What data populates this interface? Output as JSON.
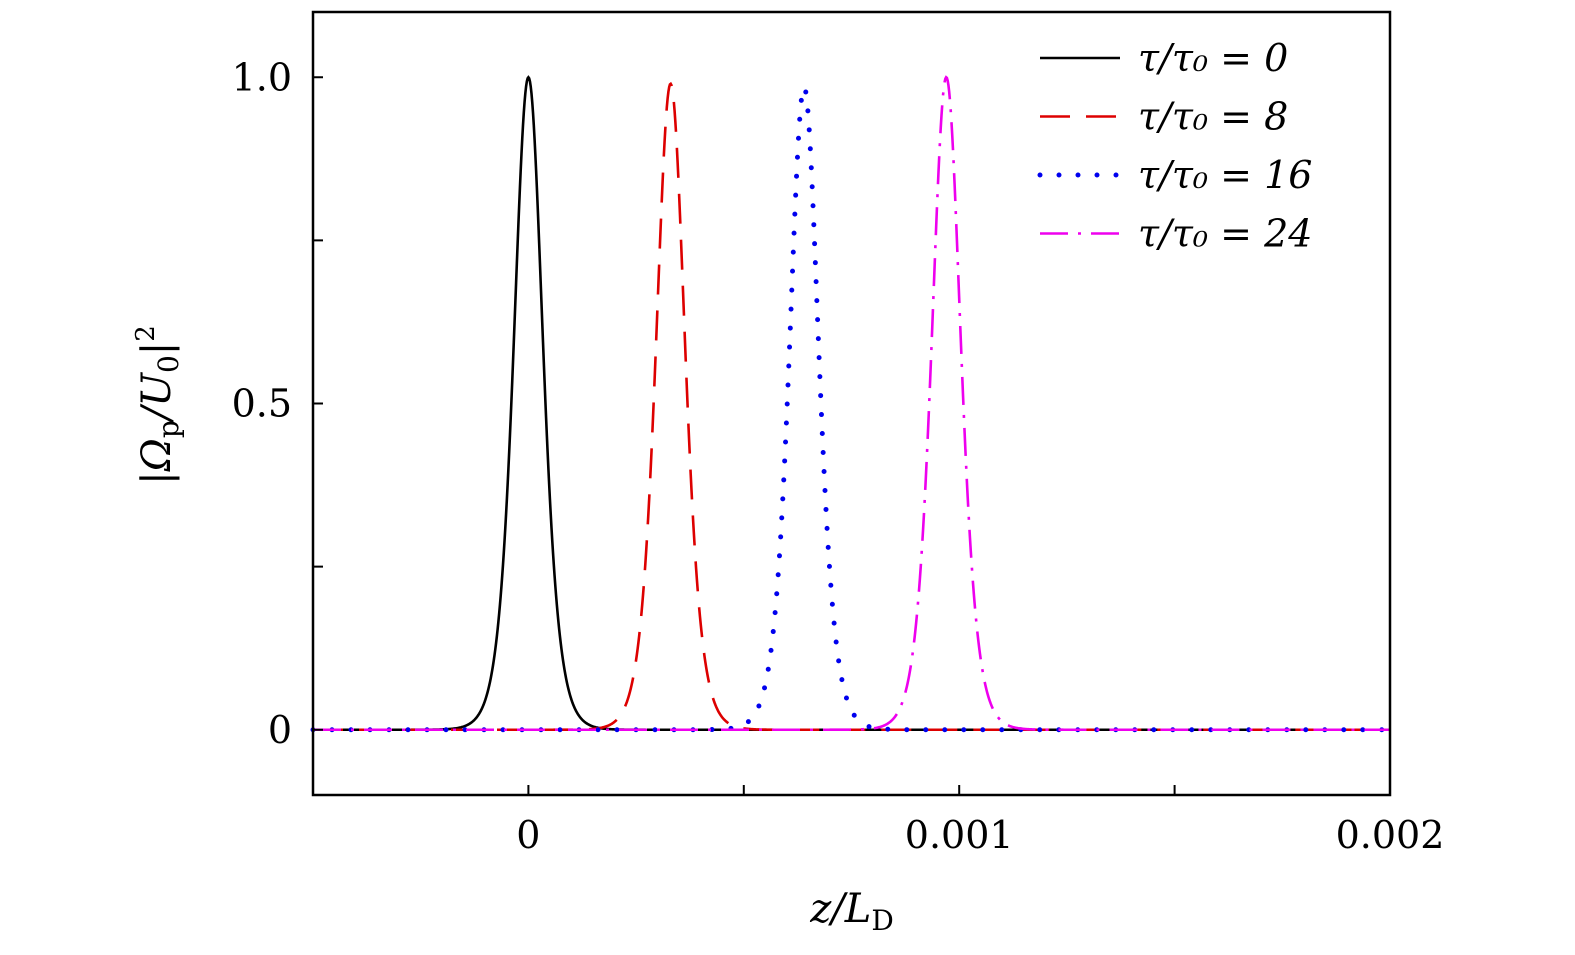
{
  "chart_data": {
    "type": "line",
    "title": "",
    "xlabel": "z/L_D",
    "ylabel": "|Ω_p/U_0|²",
    "xlim": [
      -0.0005,
      0.002
    ],
    "ylim": [
      -0.1,
      1.1
    ],
    "x_ticks": [
      {
        "value": 0,
        "label": "0"
      },
      {
        "value": 0.0005,
        "label": ""
      },
      {
        "value": 0.001,
        "label": "0.001"
      },
      {
        "value": 0.0015,
        "label": ""
      },
      {
        "value": 0.002,
        "label": "0.002"
      }
    ],
    "y_ticks": [
      {
        "value": 0,
        "label": "0"
      },
      {
        "value": 0.25,
        "label": ""
      },
      {
        "value": 0.5,
        "label": "0.5"
      },
      {
        "value": 0.75,
        "label": ""
      },
      {
        "value": 1.0,
        "label": "1.0"
      }
    ],
    "grid": false,
    "legend_position": "top-right",
    "series": [
      {
        "name": "τ/τ₀ = 0",
        "center": 0.0,
        "peak": 1.0,
        "width": 4.5e-05,
        "color": "#000000",
        "style": "solid"
      },
      {
        "name": "τ/τ₀ = 8",
        "center": 0.00033,
        "peak": 0.99,
        "width": 4.5e-05,
        "color": "#dd0000",
        "style": "dashed"
      },
      {
        "name": "τ/τ₀ = 16",
        "center": 0.00064,
        "peak": 0.985,
        "width": 4.5e-05,
        "color": "#0000ee",
        "style": "dotted"
      },
      {
        "name": "τ/τ₀ = 24",
        "center": 0.00097,
        "peak": 1.0,
        "width": 4.5e-05,
        "color": "#ee00ee",
        "style": "dashdot"
      }
    ]
  }
}
